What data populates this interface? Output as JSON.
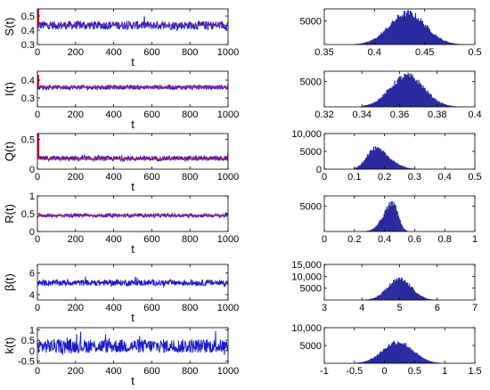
{
  "chart_data": [
    {
      "type": "line",
      "panel": "time-series",
      "ylabel": "S(t)",
      "xlabel": "t",
      "xlim": [
        0,
        1000
      ],
      "ylim": [
        0.3,
        0.55
      ],
      "xticks": [
        0,
        200,
        400,
        600,
        800,
        1000
      ],
      "xtick_labels": [
        "0",
        "200",
        "400",
        "600",
        "800",
        "1000"
      ],
      "yticks": [
        0.3,
        0.4,
        0.5
      ],
      "ytick_labels": [
        "0.3",
        "0.4",
        "0.5"
      ],
      "series": [
        {
          "style": "stochastic",
          "color": "#1c1cc8",
          "mean": 0.435,
          "amplitude": 0.03,
          "start": 0.52,
          "end": 0.46
        },
        {
          "style": "deterministic",
          "color": "#e8103a",
          "start": 0.55,
          "settle": 0.435
        }
      ]
    },
    {
      "type": "bar",
      "panel": "histogram",
      "xlim": [
        0.35,
        0.5
      ],
      "ylim": [
        0,
        7500
      ],
      "xticks": [
        0.35,
        0.4,
        0.45,
        0.5
      ],
      "xtick_labels": [
        "0.35",
        "0.4",
        "0.45",
        "0.5"
      ],
      "yticks": [
        5000
      ],
      "ytick_labels": [
        "5000"
      ],
      "distribution": {
        "color": "#2b2ba0",
        "center": 0.433,
        "spread": 0.018,
        "peak": 6800,
        "support": [
          0.38,
          0.49
        ]
      }
    },
    {
      "type": "line",
      "panel": "time-series",
      "ylabel": "I(t)",
      "xlabel": "t",
      "xlim": [
        0,
        1000
      ],
      "ylim": [
        0.25,
        0.45
      ],
      "xticks": [
        0,
        200,
        400,
        600,
        800,
        1000
      ],
      "xtick_labels": [
        "0",
        "200",
        "400",
        "600",
        "800",
        "1000"
      ],
      "yticks": [
        0.3,
        0.4
      ],
      "ytick_labels": [
        "0.3",
        "0.4"
      ],
      "series": [
        {
          "style": "stochastic",
          "color": "#1c1cc8",
          "mean": 0.36,
          "amplitude": 0.012,
          "start": 0.4,
          "end": 0.38
        },
        {
          "style": "deterministic",
          "color": "#e8103a",
          "start": 0.43,
          "settle": 0.36
        }
      ]
    },
    {
      "type": "bar",
      "panel": "histogram",
      "xlim": [
        0.32,
        0.4
      ],
      "ylim": [
        0,
        7000
      ],
      "xticks": [
        0.32,
        0.34,
        0.36,
        0.38,
        0.4
      ],
      "xtick_labels": [
        "0.32",
        "0.34",
        "0.36",
        "0.38",
        "0.4"
      ],
      "yticks": [
        5000
      ],
      "ytick_labels": [
        "5000"
      ],
      "distribution": {
        "color": "#2b2ba0",
        "center": 0.364,
        "spread": 0.009,
        "peak": 6300,
        "support": [
          0.34,
          0.397
        ]
      }
    },
    {
      "type": "line",
      "panel": "time-series",
      "ylabel": "Q(t)",
      "xlabel": "t",
      "xlim": [
        0,
        1000
      ],
      "ylim": [
        0,
        0.6
      ],
      "xticks": [
        0,
        200,
        400,
        600,
        800,
        1000
      ],
      "xtick_labels": [
        "0",
        "200",
        "400",
        "600",
        "800",
        "1000"
      ],
      "yticks": [
        0,
        0.5
      ],
      "ytick_labels": [
        "0",
        "0.5"
      ],
      "series": [
        {
          "style": "stochastic",
          "color": "#1c1cc8",
          "mean": 0.18,
          "amplitude": 0.04,
          "start": 0.2,
          "end": 0.3
        },
        {
          "style": "deterministic",
          "color": "#e8103a",
          "start": 0.6,
          "settle": 0.17
        }
      ]
    },
    {
      "type": "bar",
      "panel": "histogram",
      "xlim": [
        0,
        0.5
      ],
      "ylim": [
        0,
        10000
      ],
      "xticks": [
        0,
        0.1,
        0.2,
        0.3,
        0.4,
        0.5
      ],
      "xtick_labels": [
        "0",
        "0.1",
        "0.2",
        "0.3",
        "0.4",
        "0.5"
      ],
      "yticks": [
        0,
        5000,
        10000
      ],
      "ytick_labels": [
        "0",
        "5000",
        "10,000"
      ],
      "distribution": {
        "color": "#2b2ba0",
        "center": 0.17,
        "spread": 0.035,
        "peak": 6000,
        "skew": 1.5,
        "support": [
          0.1,
          0.32
        ]
      }
    },
    {
      "type": "line",
      "panel": "time-series",
      "ylabel": "R(t)",
      "xlabel": "t",
      "xlim": [
        0,
        1000
      ],
      "ylim": [
        0,
        1
      ],
      "xticks": [
        0,
        200,
        400,
        600,
        800,
        1000
      ],
      "xtick_labels": [
        "0",
        "200",
        "400",
        "600",
        "800",
        "1000"
      ],
      "yticks": [
        0,
        0.5,
        1
      ],
      "ytick_labels": [
        "0",
        "0.5",
        "1"
      ],
      "series": [
        {
          "style": "stochastic",
          "color": "#1c1cc8",
          "mean": 0.45,
          "amplitude": 0.05,
          "start": 0.45,
          "end": 0.45
        },
        {
          "style": "deterministic",
          "color": "#e8103a",
          "start": 0.4,
          "settle": 0.45
        }
      ]
    },
    {
      "type": "bar",
      "panel": "histogram",
      "xlim": [
        0,
        1
      ],
      "ylim": [
        0,
        7000
      ],
      "xticks": [
        0,
        0.2,
        0.4,
        0.6,
        0.8,
        1
      ],
      "xtick_labels": [
        "0",
        "0.2",
        "0.4",
        "0.6",
        "0.8",
        "1"
      ],
      "yticks": [
        5000
      ],
      "ytick_labels": [
        "5000"
      ],
      "distribution": {
        "color": "#2b2ba0",
        "center": 0.45,
        "spread": 0.045,
        "peak": 5800,
        "skew": -1.5,
        "support": [
          0.25,
          0.56
        ]
      }
    },
    {
      "type": "line",
      "panel": "time-series",
      "ylabel": "β(t)",
      "xlabel": "t",
      "xlim": [
        0,
        1000
      ],
      "ylim": [
        3.5,
        6.8
      ],
      "xticks": [
        0,
        200,
        400,
        600,
        800,
        1000
      ],
      "xtick_labels": [
        "0",
        "200",
        "400",
        "600",
        "800",
        "1000"
      ],
      "yticks": [
        4,
        6
      ],
      "ytick_labels": [
        "4",
        "6"
      ],
      "series": [
        {
          "style": "stochastic",
          "color": "#1c1cc8",
          "mean": 5.1,
          "amplitude": 0.28,
          "start": 5.0,
          "end": 5.0
        }
      ]
    },
    {
      "type": "bar",
      "panel": "histogram",
      "xlim": [
        3,
        7
      ],
      "ylim": [
        0,
        15000
      ],
      "xticks": [
        3,
        4,
        5,
        6,
        7
      ],
      "xtick_labels": [
        "3",
        "4",
        "5",
        "6",
        "7"
      ],
      "yticks": [
        5000,
        10000,
        15000
      ],
      "ytick_labels": [
        "5000",
        "10,000",
        "15,000"
      ],
      "distribution": {
        "color": "#2b2ba0",
        "center": 5.0,
        "spread": 0.32,
        "peak": 9000,
        "support": [
          4.0,
          6.0
        ]
      }
    },
    {
      "type": "line",
      "panel": "time-series",
      "ylabel": "k(t)",
      "xlabel": "t",
      "xlim": [
        0,
        1000
      ],
      "ylim": [
        -0.6,
        1.1
      ],
      "xticks": [
        0,
        200,
        400,
        600,
        800,
        1000
      ],
      "xtick_labels": [
        "0",
        "200",
        "400",
        "600",
        "800",
        "1000"
      ],
      "yticks": [
        -0.5,
        0,
        0.5,
        1
      ],
      "ytick_labels": [
        "-0.5",
        "0",
        "0.5",
        "1"
      ],
      "series": [
        {
          "style": "stochastic",
          "color": "#1c1cc8",
          "mean": 0.22,
          "amplitude": 0.33,
          "start": 0.2,
          "end": 0.2
        }
      ]
    },
    {
      "type": "bar",
      "panel": "histogram",
      "xlim": [
        -1,
        1.5
      ],
      "ylim": [
        0,
        10000
      ],
      "xticks": [
        -1,
        -0.5,
        0,
        0.5,
        1,
        1.5
      ],
      "xtick_labels": [
        "-1",
        "-0.5",
        "0",
        "0.5",
        "1",
        "1.5"
      ],
      "yticks": [
        5000,
        10000
      ],
      "ytick_labels": [
        "5000",
        "10,000"
      ],
      "distribution": {
        "color": "#2b2ba0",
        "center": 0.22,
        "spread": 0.25,
        "peak": 6200,
        "support": [
          -0.5,
          1.0
        ]
      }
    }
  ]
}
